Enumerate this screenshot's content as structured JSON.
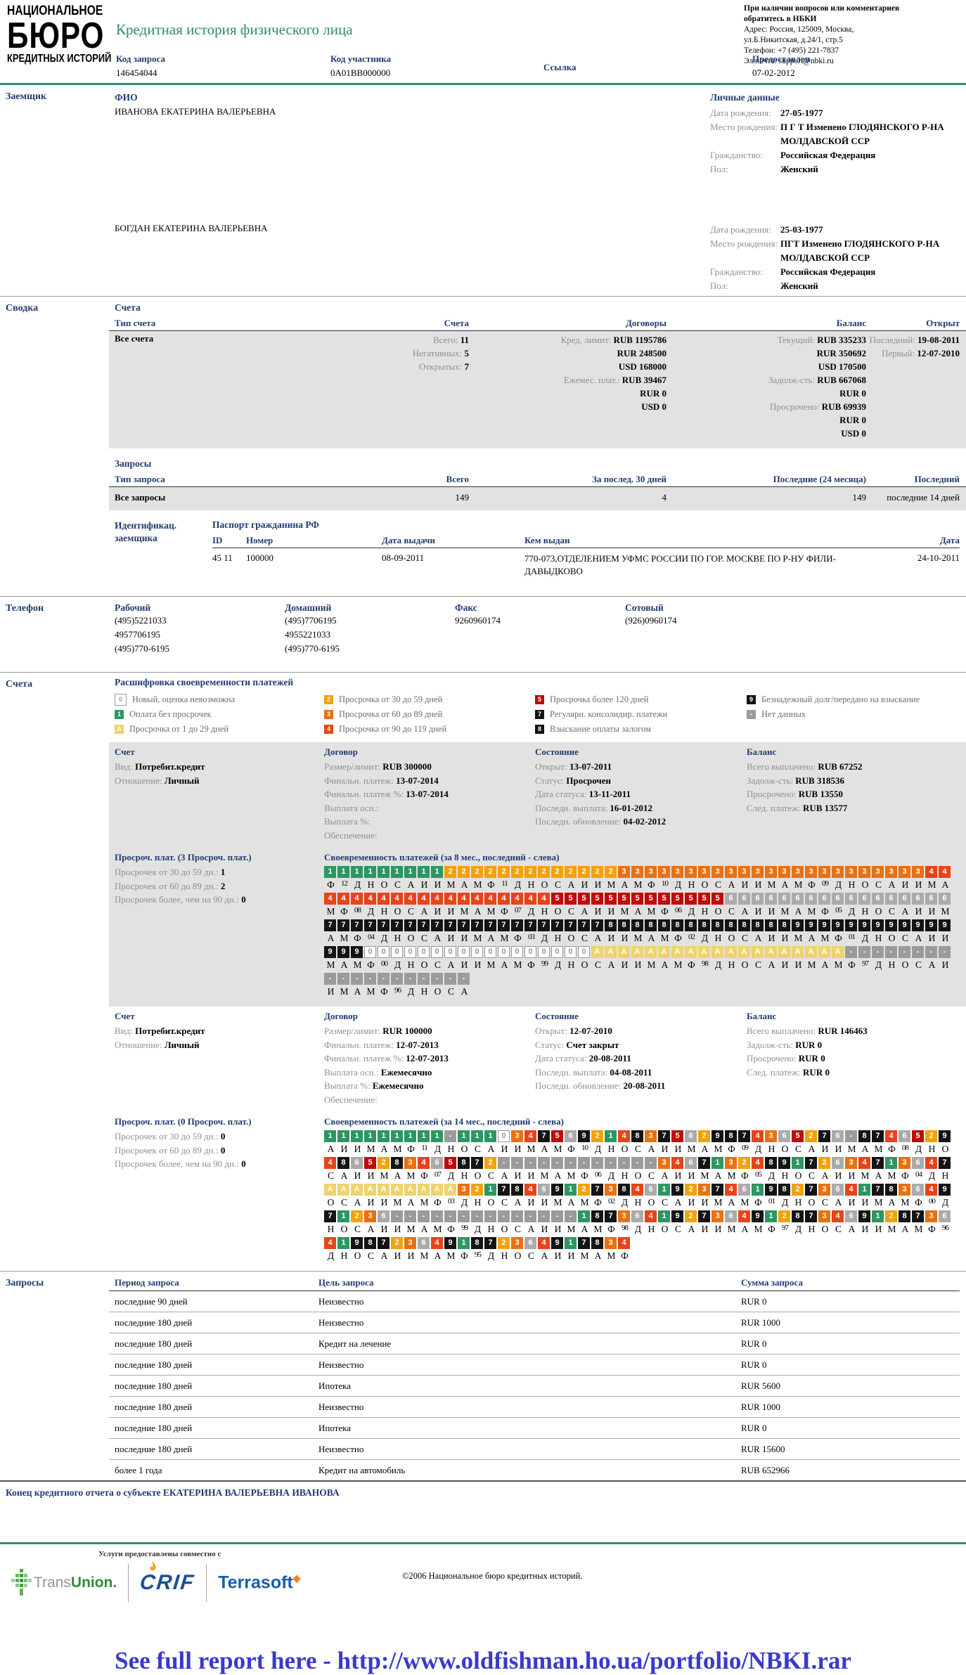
{
  "colors": {
    "accent_teal": "#2E8B74",
    "heading_navy": "#1F3C71",
    "link_blue": "#3A3ACB",
    "grid": {
      "c0": "#FFFFFF",
      "c1": "#2E9663",
      "c2": "#F2A20D",
      "c3": "#E87113",
      "c4": "#E8431A",
      "c5": "#C00A0A",
      "c6": "#ABABAB",
      "c789": "#141414",
      "cA": "#EFD36B",
      "cdash": "#9B9B9B"
    }
  },
  "header": {
    "logo": {
      "line1": "НАЦИОНАЛЬНОЕ",
      "line2": "БЮРО",
      "line3": "КРЕДИТНЫХ ИСТОРИЙ"
    },
    "title": "Кредитная история физического лица",
    "contact": {
      "bold1": "При наличии вопросов или комментариев",
      "bold2": "обратитесь в НБКИ",
      "lines": [
        "Адрес: Россия, 125009, Москва,",
        "ул.Б.Никитская, д.24/1, стр.5",
        "Телефон: +7 (495) 221-7837",
        "Эл.почта: support@nbki.ru"
      ]
    },
    "meta": {
      "request_code_label": "Код запроса",
      "request_code": "146454044",
      "participant_code_label": "Код участника",
      "participant_code": "0A01BB000000",
      "link_label": "Ссылка",
      "provided_label": "Предоставлен",
      "provided_date": "07-02-2012"
    }
  },
  "borrower": {
    "section_label": "Заемщик",
    "fio_label": "ФИО",
    "personal_label": "Личные данные",
    "people": [
      {
        "name": "ИВАНОВА ЕКАТЕРИНА ВАЛЕРЬЕВНА",
        "personal": [
          {
            "l": "Дата рождения:",
            "v": "27-05-1977"
          },
          {
            "l": "Место рождения:",
            "v": "П Г Т Изменено ГЛОДЯНСКОГО Р-НА МОЛДАВСКОЙ ССР"
          },
          {
            "l": "Гражданство:",
            "v": "Российская Федерация"
          },
          {
            "l": "Пол:",
            "v": "Женский"
          }
        ]
      },
      {
        "name": "БОГДАН ЕКАТЕРИНА ВАЛЕРЬЕВНА",
        "personal": [
          {
            "l": "Дата рождения:",
            "v": "25-03-1977"
          },
          {
            "l": "Место рождения:",
            "v": "ПГТ Изменено ГЛОДЯНСКОГО Р-НА МОЛДАВСКОЙ ССР"
          },
          {
            "l": "Гражданство:",
            "v": "Российская Федерация"
          },
          {
            "l": "Пол:",
            "v": "Женский"
          }
        ]
      }
    ]
  },
  "summary": {
    "section_label": "Сводка",
    "accounts_subhdr": "Счета",
    "acc_headers": [
      "Тип счета",
      "Счета",
      "Договоры",
      "Баланс",
      "Открыт"
    ],
    "acc_row_type": "Все счета",
    "acc_col2": [
      {
        "l": "Всего:",
        "v": "11"
      },
      {
        "l": "Негативных:",
        "v": "5"
      },
      {
        "l": "Открытых:",
        "v": "7"
      }
    ],
    "acc_col3": [
      {
        "l": "Кред. лимит:",
        "v": "RUB 1195786"
      },
      {
        "l": "",
        "v": "RUR 248500"
      },
      {
        "l": "",
        "v": "USD 168000"
      },
      {
        "l": "Ежемес. плат.:",
        "v": "RUB 39467"
      },
      {
        "l": "",
        "v": "RUR 0"
      },
      {
        "l": "",
        "v": "USD 0"
      }
    ],
    "acc_col4": [
      {
        "l": "Текущий:",
        "v": "RUB 335233"
      },
      {
        "l": "",
        "v": "RUR 350692"
      },
      {
        "l": "",
        "v": "USD 170500"
      },
      {
        "l": "Задолж-сть:",
        "v": "RUB 667068"
      },
      {
        "l": "",
        "v": "RUR 0"
      },
      {
        "l": "Просрочено:",
        "v": "RUB 69939"
      },
      {
        "l": "",
        "v": "RUR 0"
      },
      {
        "l": "",
        "v": "USD 0"
      }
    ],
    "acc_col5": [
      {
        "l": "Последний:",
        "v": "19-08-2011"
      },
      {
        "l": "Первый:",
        "v": "12-07-2010"
      }
    ],
    "req_subhdr": "Запросы",
    "req_headers": [
      "Тип запроса",
      "Всего",
      "За послед. 30 дней",
      "Последние (24 месяца)",
      "Последний"
    ],
    "req_row": [
      "Все запросы",
      "149",
      "4",
      "149",
      "последние 14 дней"
    ],
    "ident_label": "Идентификац. заемщика",
    "passport_hdr": "Паспорт гражданина РФ",
    "passport_headers": [
      "ID",
      "Номер",
      "Дата выдачи",
      "Кем выдан",
      "Дата"
    ],
    "passport_row": [
      "45 11",
      "100000",
      "08-09-2011",
      "770-073,ОТДЕЛЕНИЕМ УФМС РОССИИ ПО ГОР. МОСКВЕ ПО Р-НУ ФИЛИ-ДАВЫДКОВО",
      "24-10-2011"
    ]
  },
  "phones": {
    "section_label": "Телефон",
    "work_label": "Рабочий",
    "work": [
      "(495)5221033",
      "4957706195",
      "(495)770-6195"
    ],
    "home_label": "Домашний",
    "home": [
      "(495)7706195",
      "4955221033",
      "(495)770-6195"
    ],
    "fax_label": "Факс",
    "fax": [
      "9260960174"
    ],
    "mobile_label": "Сотовый",
    "mobile": [
      "(926)0960174"
    ]
  },
  "accounts_section": {
    "section_label": "Счета",
    "legend_title": "Расшифровка своевременности платежей",
    "legend_columns": [
      [
        {
          "s": "0",
          "t": "Новый, оценка невозможна"
        },
        {
          "s": "1",
          "t": "Оплата без просрочек"
        },
        {
          "s": "A",
          "t": "Просрочка от 1 до 29 дней"
        }
      ],
      [
        {
          "s": "2",
          "t": "Просрочка от 30 до 59 дней"
        },
        {
          "s": "3",
          "t": "Просрочка от 60 до 89 дней"
        },
        {
          "s": "4",
          "t": "Просрочка от 90 до 119 дней"
        }
      ],
      [
        {
          "s": "5",
          "t": "Просрочка более 120 дней"
        },
        {
          "s": "7",
          "t": "Регулярн. консолидир. платежи"
        },
        {
          "s": "8",
          "t": "Взыскание оплаты залогом"
        }
      ],
      [
        {
          "s": "9",
          "t": "Безнадежный долг/передано на взыскание"
        },
        {
          "s": "-",
          "t": "Нет данных"
        }
      ]
    ],
    "col_headers": {
      "account": "Счет",
      "contract": "Договор",
      "state": "Состояние",
      "balance": "Баланс"
    },
    "accounts": [
      {
        "account": [
          {
            "l": "Вид:",
            "v": "Потребит.кредит"
          },
          {
            "l": "Отношение:",
            "v": "Личный"
          }
        ],
        "contract": [
          {
            "l": "Размер/лимит:",
            "v": "RUB 300000"
          },
          {
            "l": "Финальн. платеж:",
            "v": "13-07-2014"
          },
          {
            "l": "Финальн. платеж %:",
            "v": "13-07-2014"
          },
          {
            "l": "Выплата осн.:",
            "v": ""
          },
          {
            "l": "Выплата %:",
            "v": ""
          },
          {
            "l": "Обеспечение:",
            "v": ""
          }
        ],
        "state": [
          {
            "l": "Открыт:",
            "v": "13-07-2011"
          },
          {
            "l": "Статус:",
            "v": "Просрочен"
          },
          {
            "l": "Дата статуса:",
            "v": "13-11-2011"
          },
          {
            "l": "Последн. выплата:",
            "v": "16-01-2012"
          },
          {
            "l": "Последн. обновление:",
            "v": "04-02-2012"
          }
        ],
        "balance": [
          {
            "l": "Всего выплачено:",
            "v": "RUB 67252"
          },
          {
            "l": "Задолж-сть:",
            "v": "RUB 318536"
          },
          {
            "l": "Просрочено:",
            "v": "RUB 13550"
          },
          {
            "l": "След. платеж:",
            "v": "RUB 13577"
          }
        ],
        "late_title": "Просроч. плат. (3 Просроч. плат.)",
        "late_lines": [
          {
            "l": "Просрочек от 30 до 59 дн.:",
            "v": "1"
          },
          {
            "l": "Просрочек от 60 до 89 дн.:",
            "v": "2"
          },
          {
            "l": "Просрочек более, чем на 90 дн.:",
            "v": "0"
          }
        ],
        "grid_title": "Своевременность платежей (за 8 мес., последний - слева)",
        "grid": {
          "rows": [
            {
              "c": "11111111122222222222223333333333333333333333344",
              "m": "Ф 12 Д Н О С А И И М А М Ф 11 Д Н О С А И И М А М Ф 10 Д Н О С А И И М А М Ф 09 Д Н О С А И И М А"
            },
            {
              "c": "44444444444444444555555555555566666666666666666",
              "m": "М Ф 08 Д Н О С А И И М А М Ф 07 Д Н О С А И И М А М Ф 06 Д Н О С А И И М А М Ф 05 Д Н О С А И И М"
            },
            {
              "c": "77777777777777777777788888888888888999999999999",
              "m": "А М Ф 04 Д Н О С А И И М А М Ф 03 Д Н О С А И И М А М Ф 02 Д Н О С А И И М А М Ф 01 Д Н О С А И И"
            },
            {
              "c": "99900000000000000000AAAAAAAAAAAAAAAAAAA--------",
              "m": "М А М Ф 00 Д Н О С А И И М А М Ф 99 Д Н О С А И И М А М Ф 98 Д Н О С А И И М А М Ф 97 Д Н О С А И"
            },
            {
              "c": "-----------",
              "m": "И М А М Ф 96 Д Н О С А"
            }
          ]
        }
      },
      {
        "account": [
          {
            "l": "Вид:",
            "v": "Потребит.кредит"
          },
          {
            "l": "Отношение:",
            "v": "Личный"
          }
        ],
        "contract": [
          {
            "l": "Размер/лимит:",
            "v": "RUR 100000"
          },
          {
            "l": "Финальн. платеж:",
            "v": "12-07-2013"
          },
          {
            "l": "Финальн. платеж %:",
            "v": "12-07-2013"
          },
          {
            "l": "Выплата осн.:",
            "v": "Ежемесячно"
          },
          {
            "l": "Выплата %:",
            "v": "Ежемесячно"
          },
          {
            "l": "Обеспечение:",
            "v": ""
          }
        ],
        "state": [
          {
            "l": "Открыт:",
            "v": "12-07-2010"
          },
          {
            "l": "Статус:",
            "v": "Счет закрыт"
          },
          {
            "l": "Дата статуса:",
            "v": "20-08-2011"
          },
          {
            "l": "Последн. выплата:",
            "v": "04-08-2011"
          },
          {
            "l": "Последн. обновление:",
            "v": "20-08-2011"
          }
        ],
        "balance": [
          {
            "l": "Всего выплачено:",
            "v": "RUR 146463"
          },
          {
            "l": "Задолж-сть:",
            "v": "RUR 0"
          },
          {
            "l": "Просрочено:",
            "v": "RUR 0"
          },
          {
            "l": "След. платеж:",
            "v": "RUR 0"
          }
        ],
        "late_title": "Просроч. плат. (0 Просроч. плат.)",
        "late_lines": [
          {
            "l": "Просрочек от 30 до 59 дн.:",
            "v": "0"
          },
          {
            "l": "Просрочек от 60 до 89 дн.:",
            "v": "0"
          },
          {
            "l": "Просрочек более, чем на 90 дн.:",
            "v": "0"
          }
        ],
        "grid_title": "Своевременность платежей (за 14 мес., последний - слева)",
        "grid": {
          "rows": [
            {
              "c": "111111111-11103475692148375629874365276-8746529",
              "m": "А И И М А М Ф 11 Д Н О С А И И М А М Ф 10 Д Н О С А И И М А М Ф 09 Д Н О С А И И М А М Ф 08 Д Н О"
            },
            {
              "c": "4865283465872------------3467132489172634713647",
              "m": "С А И И М А М Ф 07 Д Н О С А И И М А М Ф 06 Д Н О С А И И М А М Ф 05 Д Н О С А И И М А М Ф 04 Д Н"
            },
            {
              "c": "AAAAAAAAAA3217846912738461923746198273641783649",
              "m": "О С А И И М А М Ф 03 Д Н О С А И И М А М Ф 02 Д Н О С А И И М А М Ф 01 Д Н О С А И И М А М Ф 00 Д"
            },
            {
              "c": "71236--------------1873641927364912873469128736",
              "m": "Н О С А И И М А М Ф 99 Д Н О С А И И М А М Ф 98 Д Н О С А И И М А М Ф 97 Д Н О С А И И М А М Ф 96"
            },
            {
              "c": "41987236491872364917834",
              "m": "Д Н О С А И И М А М Ф 95 Д Н О С А И И М А М Ф"
            }
          ]
        }
      }
    ]
  },
  "requests": {
    "section_label": "Запросы",
    "headers": [
      "Период запроса",
      "Цель запроса",
      "Сумма запроса"
    ],
    "rows": [
      [
        "последние 90 дней",
        "Неизвестно",
        "RUR 0"
      ],
      [
        "последние 180 дней",
        "Неизвестно",
        "RUR 1000"
      ],
      [
        "последние 180 дней",
        "Кредит на лечение",
        "RUR 0"
      ],
      [
        "последние 180 дней",
        "Неизвестно",
        "RUR 0"
      ],
      [
        "последние 180 дней",
        "Ипотека",
        "RUR 5600"
      ],
      [
        "последние 180 дней",
        "Неизвестно",
        "RUR 1000"
      ],
      [
        "последние 180 дней",
        "Ипотека",
        "RUR 0"
      ],
      [
        "последние 180 дней",
        "Неизвестно",
        "RUR 15600"
      ],
      [
        "более 1 года",
        "Кредит на автомобиль",
        "RUB 652966"
      ]
    ]
  },
  "end_line": {
    "prefix": "Конец кредитного отчета о субъекте",
    "name": "ЕКАТЕРИНА ВАЛЕРЬЕВНА ИВАНОВА"
  },
  "footer": {
    "services_note": "Услуги предоставлены совместно с",
    "logo_transunion_gray": "Trans",
    "logo_transunion_green": "Union.",
    "logo_crif": "CRIF",
    "logo_terrasoft": "Terrasoft",
    "copyright": "©2006 Национальное бюро кредитных историй."
  },
  "watermark": "See full report here - http://www.oldfishman.ho.ua/portfolio/NBKI.rar"
}
